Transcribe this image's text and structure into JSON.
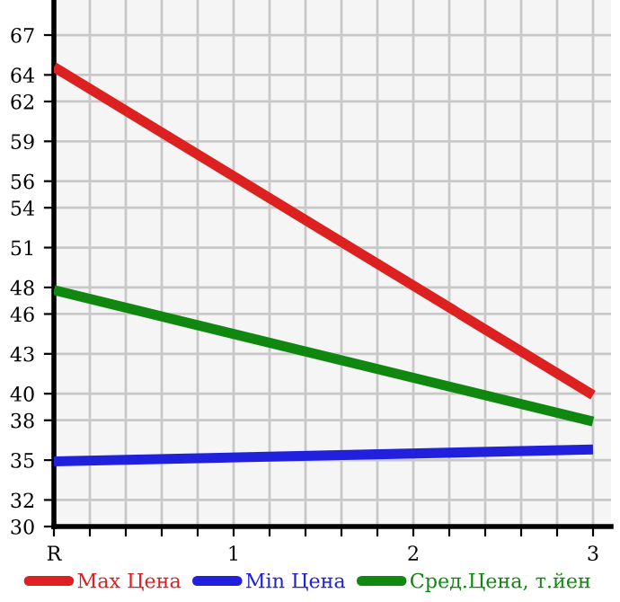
{
  "chart_data": {
    "type": "line",
    "x": [
      0,
      3
    ],
    "series": [
      {
        "name": "Max Цена",
        "color": "#dd2020",
        "values": [
          64.6,
          39.9
        ]
      },
      {
        "name": "Min Цена",
        "color": "#2020dd",
        "values": [
          34.9,
          35.8
        ]
      },
      {
        "name": "Сред.Цена, т.йен",
        "color": "#108810",
        "values": [
          47.8,
          37.9
        ]
      }
    ],
    "xlim": [
      0,
      3.1
    ],
    "xticks": [
      {
        "value": 0,
        "label": "R"
      },
      {
        "value": 0.2,
        "label": null
      },
      {
        "value": 0.4,
        "label": null
      },
      {
        "value": 0.6,
        "label": null
      },
      {
        "value": 0.8,
        "label": null
      },
      {
        "value": 1,
        "label": "1"
      },
      {
        "value": 1.2,
        "label": null
      },
      {
        "value": 1.4,
        "label": null
      },
      {
        "value": 1.6,
        "label": null
      },
      {
        "value": 1.8,
        "label": null
      },
      {
        "value": 2,
        "label": "2"
      },
      {
        "value": 2.2,
        "label": null
      },
      {
        "value": 2.4,
        "label": null
      },
      {
        "value": 2.6,
        "label": null
      },
      {
        "value": 2.8,
        "label": null
      },
      {
        "value": 3,
        "label": "3"
      }
    ],
    "ylim": [
      30,
      69.64
    ],
    "yticks": [
      30,
      32,
      35,
      38,
      40,
      43,
      46,
      48,
      51,
      54,
      56,
      59,
      62,
      64,
      67
    ],
    "grid": true,
    "legend": "bottom",
    "marker": "none",
    "line_style": "solid"
  }
}
